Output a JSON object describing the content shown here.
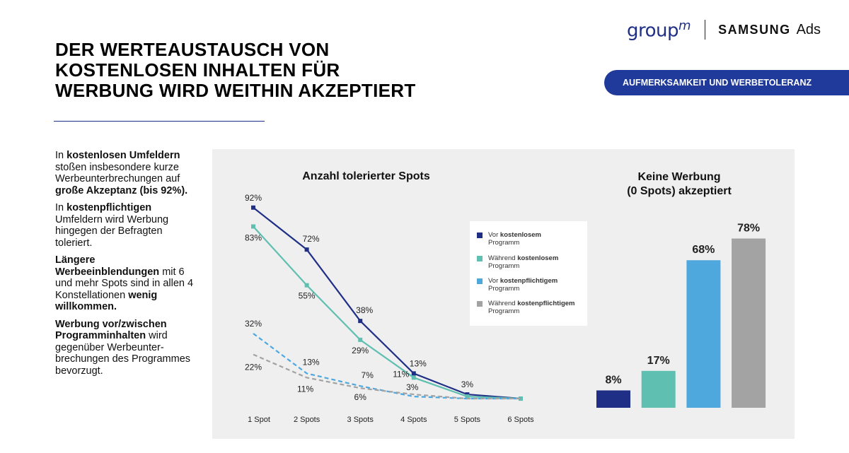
{
  "header": {
    "logo_groupm": "group",
    "logo_groupm_sup": "m",
    "logo_samsung": "SAMSUNG",
    "logo_ads": "Ads",
    "title_lines": [
      "DER WERTEAUSTAUSCH VON",
      "KOSTENLOSEN INHALTEN FÜR",
      "WERBUNG WIRD WEITHIN AKZEPTIERT"
    ],
    "badge": "AUFMERKSAMKEIT UND WERBETOLERANZ"
  },
  "text": {
    "p1_a": "In ",
    "p1_b": "kostenlosen Umfeldern",
    "p1_c": " stoßen insbesondere kurze Werbeunterbrechungen auf ",
    "p1_d": "große Akzeptanz (bis 92%).",
    "p2_a": "In ",
    "p2_b": "kostenpflichtigen",
    "p2_c": " Umfeldern wird Werbung hingegen der Befragten toleriert.",
    "p3_a": "Längere Werbeeinblendungen",
    "p3_b": " mit 6 und mehr Spots sind in allen 4 Konstellationen ",
    "p3_c": "wenig willkommen.",
    "p4_a": "Werbung vor/zwischen Programminhalten",
    "p4_b": " wird gegenüber Werbeunter-brechungen des Programmes bevorzugt."
  },
  "legend": [
    {
      "a": "Vor ",
      "b": "kostenlosem",
      "c": "Programm"
    },
    {
      "a": "Während ",
      "b": "kostenlosem",
      "c": "Programm"
    },
    {
      "a": "Vor ",
      "b": "kostenpflichtigem",
      "c": "Programm"
    },
    {
      "a": "Während ",
      "b": "kostenpflichtigem",
      "c": "Programm"
    }
  ],
  "colors": {
    "navy": "#1f2f86",
    "teal": "#5fbfb0",
    "lightblue": "#4ea8dd",
    "grey": "#a3a3a3"
  },
  "chart_data": [
    {
      "type": "line",
      "title": "Anzahl tolerierter Spots",
      "categories": [
        "1 Spot",
        "2 Spots",
        "3 Spots",
        "4 Spots",
        "5 Spots",
        "6 Spots"
      ],
      "series": [
        {
          "name": "Vor kostenlosem Programm",
          "values": [
            92,
            72,
            38,
            13,
            3,
            1
          ],
          "labels": [
            "92%",
            "72%",
            "38%",
            "13%",
            "3%",
            ""
          ],
          "color": "#1f2f86",
          "dash": false
        },
        {
          "name": "Während kostenlosem Programm",
          "values": [
            83,
            55,
            29,
            11,
            2,
            1
          ],
          "labels": [
            "83%",
            "55%",
            "29%",
            "11%",
            "",
            ""
          ],
          "color": "#5fbfb0",
          "dash": false
        },
        {
          "name": "Vor kostenpflichtigem Programm",
          "values": [
            32,
            13,
            7,
            2,
            1,
            1
          ],
          "labels": [
            "32%",
            "13%",
            "7%",
            "",
            "",
            ""
          ],
          "color": "#4ea8dd",
          "dash": true
        },
        {
          "name": "Während kostenpflichtigem Programm",
          "values": [
            22,
            11,
            6,
            3,
            1,
            1
          ],
          "labels": [
            "22%",
            "11%",
            "6%",
            "3%",
            "",
            ""
          ],
          "color": "#a3a3a3",
          "dash": true
        }
      ],
      "ylim": [
        0,
        100
      ],
      "grid": false,
      "legend": "right"
    },
    {
      "type": "bar",
      "title": "Keine Werbung (0 Spots) akzeptiert",
      "title_lines": [
        "Keine Werbung",
        "(0 Spots) akzeptiert"
      ],
      "categories": [
        "Vor kostenlosem Programm",
        "Während kostenlosem Programm",
        "Vor kostenpflichtigem Programm",
        "Während kostenpflichtigem Programm"
      ],
      "values": [
        8,
        17,
        68,
        78
      ],
      "labels": [
        "8%",
        "17%",
        "68%",
        "78%"
      ],
      "colors": [
        "#1f2f86",
        "#5fbfb0",
        "#4ea8dd",
        "#a3a3a3"
      ],
      "ylim": [
        0,
        100
      ]
    }
  ]
}
